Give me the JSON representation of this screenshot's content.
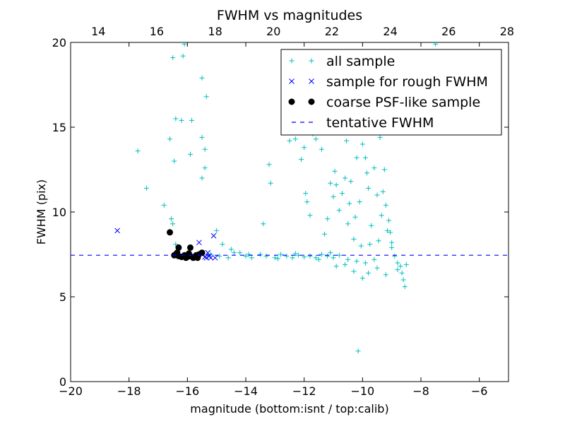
{
  "chart_data": {
    "type": "scatter",
    "title": "FWHM vs magnitudes",
    "xlabel": "magnitude (bottom:isnt / top:calib)",
    "ylabel": "FWHM (pix)",
    "xlim": [
      -20,
      -5
    ],
    "ylim": [
      0,
      20
    ],
    "top_xlim": [
      13.05,
      28.05
    ],
    "xticks": [
      -20,
      -18,
      -16,
      -14,
      -12,
      -10,
      -8,
      -6
    ],
    "xtick_labels": [
      "−20",
      "−18",
      "−16",
      "−14",
      "−12",
      "−10",
      "−8",
      "−6"
    ],
    "yticks": [
      0,
      5,
      10,
      15,
      20
    ],
    "ytick_labels": [
      "0",
      "5",
      "10",
      "15",
      "20"
    ],
    "top_xticks": [
      14,
      16,
      18,
      20,
      22,
      24,
      26,
      28
    ],
    "top_xtick_labels": [
      "14",
      "16",
      "18",
      "20",
      "22",
      "24",
      "26",
      "28"
    ],
    "grid": false,
    "legend_position": "top-right",
    "series": [
      {
        "name": "all sample",
        "marker": "plus",
        "color": "#00BFBF",
        "points": [
          [
            -17.7,
            13.6
          ],
          [
            -17.4,
            11.4
          ],
          [
            -16.8,
            10.4
          ],
          [
            -16.6,
            14.3
          ],
          [
            -16.5,
            19.1
          ],
          [
            -16.4,
            15.5
          ],
          [
            -16.45,
            13.0
          ],
          [
            -16.2,
            15.4
          ],
          [
            -16.15,
            19.2
          ],
          [
            -16.1,
            19.9
          ],
          [
            -15.9,
            13.4
          ],
          [
            -15.85,
            15.4
          ],
          [
            -15.5,
            17.9
          ],
          [
            -15.5,
            14.4
          ],
          [
            -15.4,
            13.7
          ],
          [
            -15.4,
            12.6
          ],
          [
            -15.35,
            16.8
          ],
          [
            -15.5,
            12.0
          ],
          [
            -16.55,
            9.6
          ],
          [
            -16.5,
            9.3
          ],
          [
            -16.4,
            8.1
          ],
          [
            -15.0,
            8.9
          ],
          [
            -14.8,
            8.1
          ],
          [
            -14.5,
            7.8
          ],
          [
            -14.2,
            7.6
          ],
          [
            -13.4,
            9.3
          ],
          [
            -13.2,
            12.8
          ],
          [
            -13.15,
            11.7
          ],
          [
            -12.5,
            14.2
          ],
          [
            -12.3,
            14.3
          ],
          [
            -12.1,
            13.1
          ],
          [
            -12.0,
            13.8
          ],
          [
            -11.95,
            11.1
          ],
          [
            -11.9,
            10.6
          ],
          [
            -11.8,
            9.8
          ],
          [
            -11.7,
            14.6
          ],
          [
            -11.6,
            14.3
          ],
          [
            -11.4,
            13.7
          ],
          [
            -11.3,
            8.7
          ],
          [
            -11.2,
            9.6
          ],
          [
            -11.1,
            11.7
          ],
          [
            -11.0,
            10.9
          ],
          [
            -10.95,
            12.4
          ],
          [
            -10.9,
            11.6
          ],
          [
            -10.8,
            10.1
          ],
          [
            -10.7,
            11.1
          ],
          [
            -10.6,
            12.0
          ],
          [
            -10.55,
            14.2
          ],
          [
            -10.5,
            9.3
          ],
          [
            -10.45,
            10.5
          ],
          [
            -10.4,
            11.8
          ],
          [
            -10.3,
            8.4
          ],
          [
            -10.25,
            9.7
          ],
          [
            -10.2,
            13.2
          ],
          [
            -10.1,
            10.6
          ],
          [
            -10.0,
            14.0
          ],
          [
            -9.9,
            13.2
          ],
          [
            -9.85,
            12.3
          ],
          [
            -9.8,
            11.4
          ],
          [
            -9.7,
            9.2
          ],
          [
            -9.6,
            12.6
          ],
          [
            -9.5,
            11.0
          ],
          [
            -9.4,
            14.4
          ],
          [
            -9.35,
            9.8
          ],
          [
            -9.3,
            11.2
          ],
          [
            -9.25,
            12.5
          ],
          [
            -9.2,
            10.4
          ],
          [
            -9.15,
            8.9
          ],
          [
            -9.1,
            9.5
          ],
          [
            -9.0,
            8.2
          ],
          [
            -9.0,
            7.9
          ],
          [
            -8.9,
            7.4
          ],
          [
            -8.8,
            7.0
          ],
          [
            -8.7,
            6.8
          ],
          [
            -8.65,
            6.4
          ],
          [
            -8.6,
            6.0
          ],
          [
            -8.55,
            5.6
          ],
          [
            -8.5,
            6.9
          ],
          [
            -8.8,
            6.6
          ],
          [
            -9.2,
            6.3
          ],
          [
            -9.5,
            6.7
          ],
          [
            -9.8,
            6.4
          ],
          [
            -10.0,
            6.1
          ],
          [
            -10.3,
            6.5
          ],
          [
            -10.6,
            6.9
          ],
          [
            -10.9,
            6.8
          ],
          [
            -9.6,
            7.2
          ],
          [
            -9.9,
            7.0
          ],
          [
            -10.2,
            7.1
          ],
          [
            -10.5,
            7.2
          ],
          [
            -10.05,
            8.0
          ],
          [
            -9.75,
            8.1
          ],
          [
            -9.45,
            8.3
          ],
          [
            -9.05,
            8.8
          ],
          [
            -10.15,
            1.8
          ],
          [
            -7.5,
            19.9
          ],
          [
            -14.0,
            7.4
          ],
          [
            -13.8,
            7.3
          ],
          [
            -13.5,
            7.5
          ],
          [
            -13.3,
            7.4
          ],
          [
            -13.0,
            7.3
          ],
          [
            -12.8,
            7.5
          ],
          [
            -12.6,
            7.4
          ],
          [
            -12.4,
            7.3
          ],
          [
            -12.2,
            7.45
          ],
          [
            -12.0,
            7.35
          ],
          [
            -11.8,
            7.4
          ],
          [
            -11.6,
            7.3
          ],
          [
            -11.4,
            7.5
          ],
          [
            -11.2,
            7.4
          ],
          [
            -11.0,
            7.3
          ],
          [
            -14.6,
            7.3
          ],
          [
            -14.9,
            7.4
          ],
          [
            -15.2,
            7.5
          ],
          [
            -14.4,
            7.6
          ],
          [
            -13.9,
            7.5
          ],
          [
            -12.9,
            7.25
          ],
          [
            -12.3,
            7.55
          ],
          [
            -11.5,
            7.2
          ],
          [
            -11.1,
            7.6
          ],
          [
            -10.8,
            7.45
          ]
        ]
      },
      {
        "name": "sample for rough FWHM",
        "marker": "x",
        "color": "#0000FF",
        "points": [
          [
            -18.4,
            8.9
          ],
          [
            -15.1,
            8.6
          ],
          [
            -15.6,
            8.2
          ],
          [
            -15.3,
            7.6
          ],
          [
            -15.25,
            7.4
          ],
          [
            -15.2,
            7.3
          ],
          [
            -15.4,
            7.35
          ],
          [
            -15.05,
            7.3
          ],
          [
            -15.5,
            7.5
          ],
          [
            -15.35,
            7.3
          ]
        ]
      },
      {
        "name": "coarse PSF-like sample",
        "marker": "circle",
        "color": "#000000",
        "points": [
          [
            -16.6,
            8.8
          ],
          [
            -16.3,
            7.9
          ],
          [
            -15.9,
            7.9
          ],
          [
            -16.4,
            7.5
          ],
          [
            -16.3,
            7.4
          ],
          [
            -16.2,
            7.35
          ],
          [
            -16.1,
            7.45
          ],
          [
            -16.0,
            7.35
          ],
          [
            -15.9,
            7.4
          ],
          [
            -15.8,
            7.3
          ],
          [
            -15.7,
            7.45
          ],
          [
            -15.6,
            7.5
          ],
          [
            -15.5,
            7.6
          ],
          [
            -15.95,
            7.55
          ],
          [
            -16.35,
            7.6
          ],
          [
            -16.45,
            7.45
          ],
          [
            -15.75,
            7.35
          ],
          [
            -15.65,
            7.3
          ],
          [
            -16.05,
            7.3
          ]
        ]
      },
      {
        "name": "tentative FWHM",
        "marker": "dashed-line",
        "color": "#0000FF",
        "y_value": 7.45
      }
    ]
  }
}
